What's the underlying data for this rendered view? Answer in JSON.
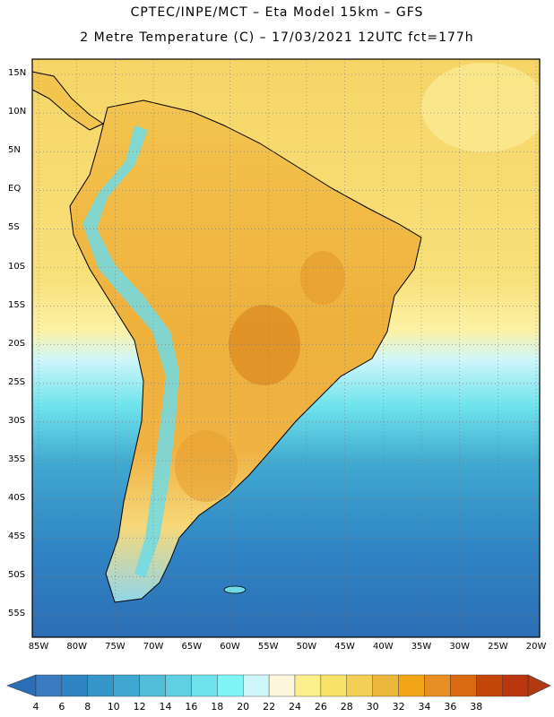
{
  "header": {
    "line1": "CPTEC/INPE/MCT –  Eta Model 15km – GFS",
    "line2": "2 Metre Temperature (C) – 17/03/2021 12UTC fct=177h"
  },
  "map": {
    "region": "South America",
    "lat_labels": [
      "15N",
      "10N",
      "5N",
      "EQ",
      "5S",
      "10S",
      "15S",
      "20S",
      "25S",
      "30S",
      "35S",
      "40S",
      "45S",
      "50S",
      "55S"
    ],
    "lon_labels": [
      "85W",
      "80W",
      "75W",
      "70W",
      "65W",
      "60W",
      "55W",
      "50W",
      "45W",
      "40W",
      "35W",
      "30W",
      "25W",
      "20W"
    ]
  },
  "colorbar": {
    "labels": [
      "4",
      "6",
      "8",
      "10",
      "12",
      "14",
      "16",
      "18",
      "20",
      "22",
      "24",
      "26",
      "28",
      "30",
      "32",
      "34",
      "36",
      "38"
    ],
    "colors": [
      "#3a7bbf",
      "#2f84c4",
      "#3597c9",
      "#40a8d0",
      "#52bdd9",
      "#5fd0e2",
      "#6ee3ec",
      "#7ef5f7",
      "#cff6fb",
      "#fdf6dd",
      "#fcf08c",
      "#f8e26a",
      "#f3cf55",
      "#ecb73d",
      "#f2a516",
      "#e88f24",
      "#d96a12",
      "#c4470a",
      "#b9360e"
    ],
    "low_color": "#2c6eb5",
    "high_color": "#b23a12"
  }
}
